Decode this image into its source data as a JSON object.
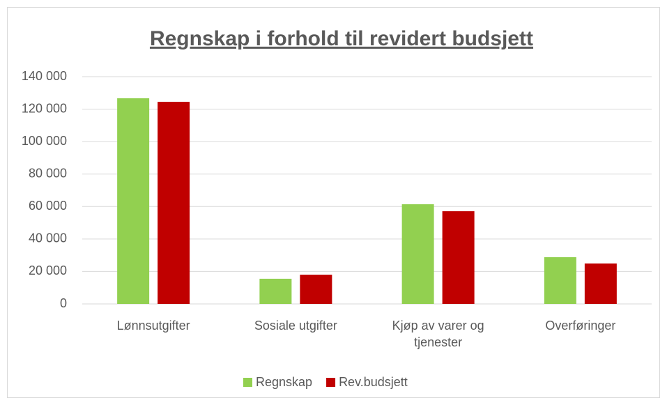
{
  "chart_data": {
    "type": "bar",
    "title": "Regnskap i forhold til revidert budsjett",
    "categories": [
      "Lønnsutgifter",
      "Sosiale utgifter",
      "Kjøp av varer og tjenester",
      "Overføringer"
    ],
    "series": [
      {
        "name": "Regnskap",
        "color": "#92d050",
        "values": [
          126700,
          15500,
          61400,
          28800
        ]
      },
      {
        "name": "Rev.budsjett",
        "color": "#c00000",
        "values": [
          124500,
          18000,
          57100,
          24900
        ]
      }
    ],
    "ylim": [
      0,
      140000
    ],
    "yticks": [
      0,
      {
        "value": 20000,
        "label": "20 000"
      },
      {
        "value": 40000,
        "label": "40 000"
      },
      {
        "value": 60000,
        "label": "60 000"
      },
      {
        "value": 80000,
        "label": "80 000"
      },
      {
        "value": 100000,
        "label": "100 000"
      },
      {
        "value": 120000,
        "label": "120 000"
      },
      {
        "value": 140000,
        "label": "140 000"
      }
    ],
    "grid": true,
    "legend": "bottom"
  }
}
